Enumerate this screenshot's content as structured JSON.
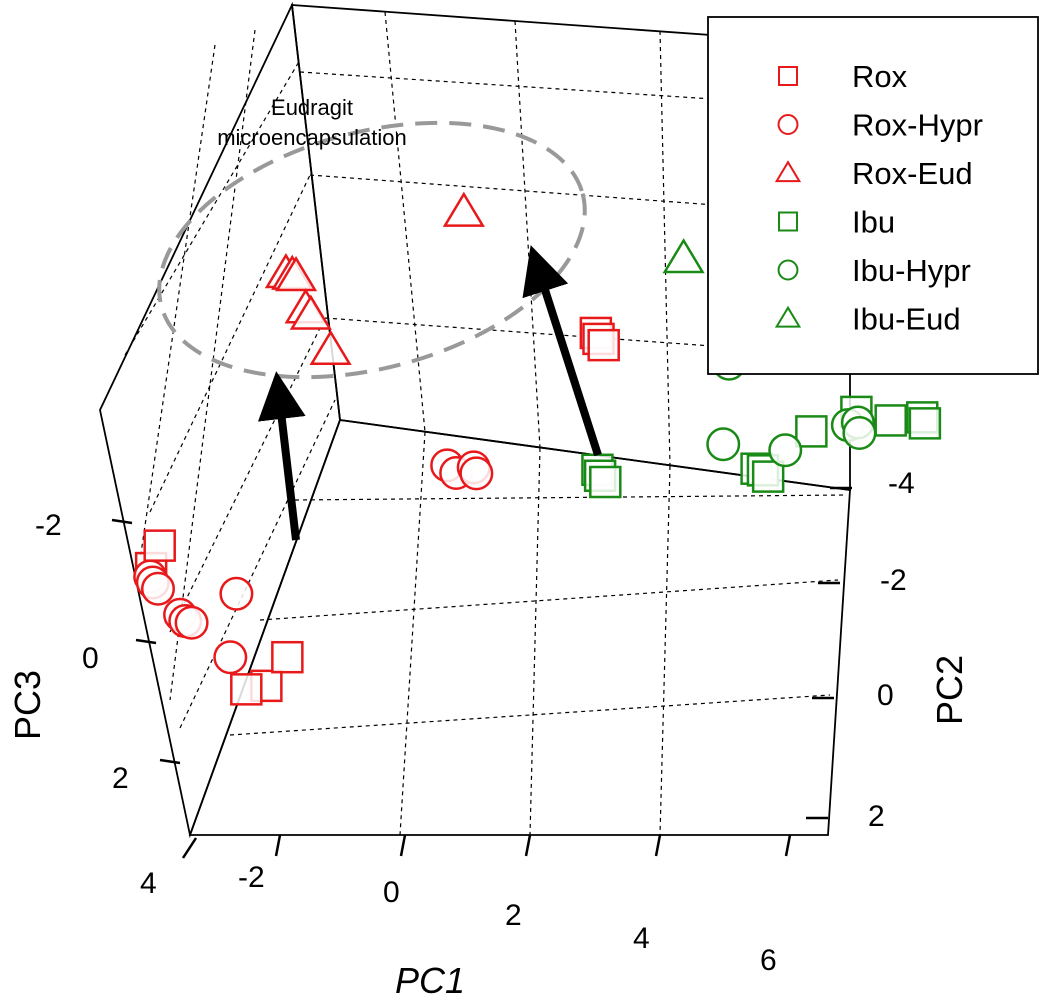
{
  "chart_data": {
    "type": "scatter",
    "projection": "3d",
    "title": "",
    "axes": {
      "x": {
        "label": "PC1",
        "ticks": [
          "-2",
          "0",
          "2",
          "4",
          "6"
        ]
      },
      "y": {
        "label": "PC2",
        "ticks": [
          "-4",
          "-2",
          "0",
          "2"
        ]
      },
      "z": {
        "label": "PC3",
        "ticks": [
          "-2",
          "0",
          "2",
          "4"
        ]
      }
    },
    "grid": true,
    "legend_position": "top-right",
    "series": [
      {
        "name": "Rox",
        "marker": "square",
        "color": "#e8191b",
        "points": [
          [
            -2.6,
            2.6,
            -0.3
          ],
          [
            -3.1,
            1.2,
            0.7
          ],
          [
            -0.5,
            2.5,
            1.6
          ],
          [
            -0.8,
            1.2,
            2.3
          ],
          [
            -0.9,
            2.2,
            2.1
          ],
          [
            0.7,
            -3.6,
            -0.8
          ],
          [
            0.8,
            -3.5,
            -0.8
          ],
          [
            0.9,
            -3.5,
            -0.7
          ]
        ]
      },
      {
        "name": "Rox-Hypr",
        "marker": "circle",
        "color": "#e8191b",
        "points": [
          [
            -2.7,
            2.3,
            0.2
          ],
          [
            -2.6,
            2.4,
            0.2
          ],
          [
            -2.5,
            2.4,
            0.3
          ],
          [
            -2.0,
            2.6,
            0.5
          ],
          [
            -1.9,
            2.6,
            0.6
          ],
          [
            -1.8,
            2.6,
            0.6
          ],
          [
            -1.4,
            2.2,
            0.2
          ],
          [
            -1.1,
            2.6,
            1.1
          ],
          [
            0.0,
            -1.0,
            -0.1
          ],
          [
            0.2,
            -0.9,
            -0.1
          ],
          [
            0.4,
            -1.0,
            -0.2
          ],
          [
            0.5,
            -0.9,
            -0.2
          ]
        ]
      },
      {
        "name": "Rox-Eud",
        "marker": "triangle",
        "color": "#e8191b",
        "points": [
          [
            -2.9,
            -0.5,
            -3.7
          ],
          [
            -2.8,
            -0.5,
            -3.7
          ],
          [
            -2.7,
            -0.4,
            -3.8
          ],
          [
            -2.4,
            -0.3,
            -3.3
          ],
          [
            -2.3,
            -0.3,
            -3.2
          ],
          [
            -1.8,
            -0.1,
            -2.8
          ],
          [
            -1.0,
            -1.8,
            -4.5
          ]
        ]
      },
      {
        "name": "Ibu",
        "marker": "square",
        "color": "#1a8a17",
        "points": [
          [
            2.2,
            -1.1,
            -0.7
          ],
          [
            2.3,
            -1.0,
            -0.7
          ],
          [
            2.4,
            -1.0,
            -0.6
          ],
          [
            4.2,
            -2.0,
            -0.6
          ],
          [
            4.3,
            -2.0,
            -0.6
          ],
          [
            4.4,
            -2.0,
            -0.5
          ],
          [
            4.6,
            -2.7,
            -0.9
          ],
          [
            5.0,
            -3.2,
            -1.0
          ],
          [
            5.5,
            -3.3,
            -0.9
          ],
          [
            5.8,
            -3.7,
            -0.7
          ],
          [
            5.9,
            -3.6,
            -0.7
          ]
        ]
      },
      {
        "name": "Ibu-Hypr",
        "marker": "circle",
        "color": "#1a8a17",
        "points": [
          [
            2.9,
            -3.3,
            -1.2
          ],
          [
            3.5,
            -2.3,
            -0.6
          ],
          [
            4.4,
            -2.4,
            -0.7
          ],
          [
            5.0,
            -3.0,
            -0.9
          ],
          [
            5.1,
            -3.1,
            -0.9
          ],
          [
            5.2,
            -3.0,
            -0.8
          ]
        ]
      },
      {
        "name": "Ibu-Eud",
        "marker": "triangle",
        "color": "#1a8a17",
        "points": [
          [
            1.4,
            -4.9,
            -4.4
          ],
          [
            1.5,
            -4.9,
            -4.4
          ],
          [
            1.6,
            -4.8,
            -4.3
          ],
          [
            2.1,
            -4.6,
            -4.3
          ],
          [
            2.2,
            -4.0,
            -3.4
          ],
          [
            2.6,
            -4.2,
            -3.5
          ],
          [
            1.8,
            -3.4,
            -3.0
          ]
        ]
      }
    ],
    "annotations": [
      {
        "text": "Eudragit\nmicroencapsulation",
        "kind": "dashed-ellipse"
      },
      {
        "text": "",
        "kind": "arrow",
        "from_series": "Rox-Hypr",
        "to_series": "Rox-Eud"
      },
      {
        "text": "",
        "kind": "arrow",
        "from_series": "Ibu-Hypr",
        "to_series": "Ibu-Eud"
      }
    ],
    "colors": {
      "rox": "#e8191b",
      "ibu": "#1a8a17",
      "arrow": "#000000",
      "ellipse": "#999999"
    }
  },
  "legend": {
    "items": [
      {
        "label": "Rox",
        "marker": "square",
        "color": "#e8191b"
      },
      {
        "label": "Rox-Hypr",
        "marker": "circle",
        "color": "#e8191b"
      },
      {
        "label": "Rox-Eud",
        "marker": "triangle",
        "color": "#e8191b"
      },
      {
        "label": "Ibu",
        "marker": "square",
        "color": "#1a8a17"
      },
      {
        "label": "Ibu-Hypr",
        "marker": "circle",
        "color": "#1a8a17"
      },
      {
        "label": "Ibu-Eud",
        "marker": "triangle",
        "color": "#1a8a17"
      }
    ]
  },
  "annotation": {
    "line1": "Eudragit",
    "line2": "microencapsulation"
  }
}
